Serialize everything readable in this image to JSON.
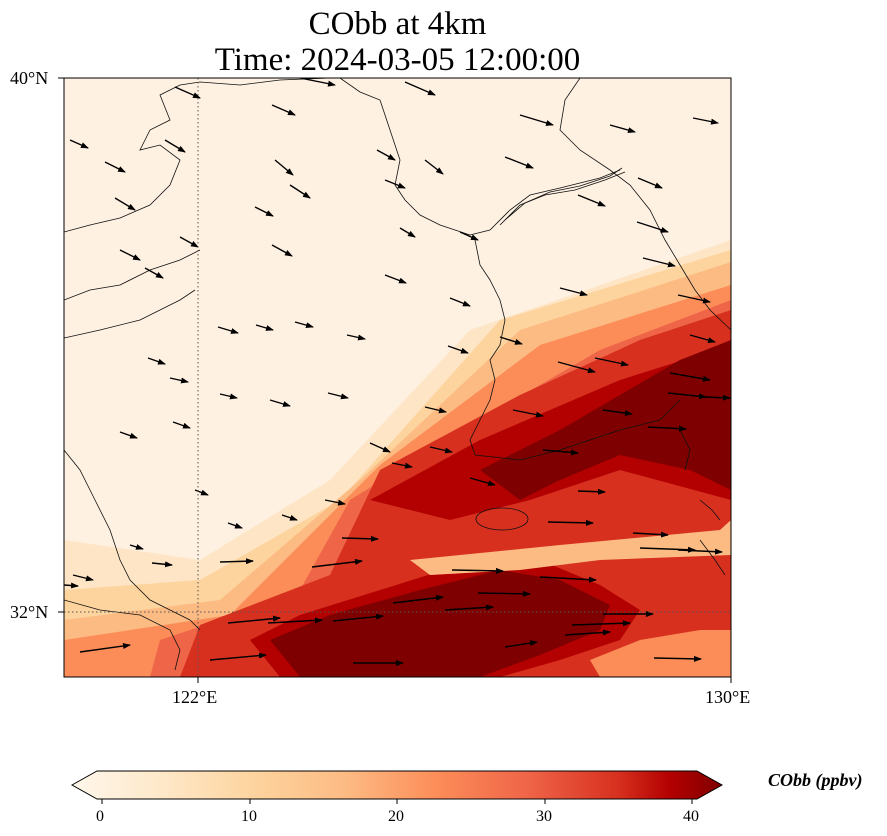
{
  "map": {
    "title_line1": "CObb at 4km",
    "title_line2": "Time: 2024-03-05 12:00:00",
    "variable": "CObb",
    "height": "4km",
    "time": "2024-03-05 12:00:00",
    "extent": {
      "lon_min": 119.6,
      "lon_max": 130,
      "lat_min": 31,
      "lat_max": 40
    },
    "lat_ticks": [
      {
        "value": 40,
        "label": "40°N"
      },
      {
        "value": 32,
        "label": "32°N"
      }
    ],
    "lon_ticks": [
      {
        "value": 122,
        "label": "122°E"
      },
      {
        "value": 130,
        "label": "130°E"
      }
    ],
    "gridlines": "dotted",
    "colormap": "OrRd",
    "colorbar": {
      "label": "CObb (ppbv)",
      "min": 0,
      "max": 40,
      "extend": "both",
      "ticks": [
        "0",
        "10",
        "20",
        "30",
        "40"
      ]
    },
    "colors": {
      "low": "#fff7ec",
      "c1": "#fee8c8",
      "c2": "#fdd49e",
      "c3": "#fdbb84",
      "c4": "#fc8d59",
      "c5": "#ef6548",
      "c6": "#d7301f",
      "c7": "#b30000",
      "high": "#7f0000"
    },
    "layers": [
      "CObb concentration field",
      "wind vectors",
      "coastlines"
    ]
  }
}
